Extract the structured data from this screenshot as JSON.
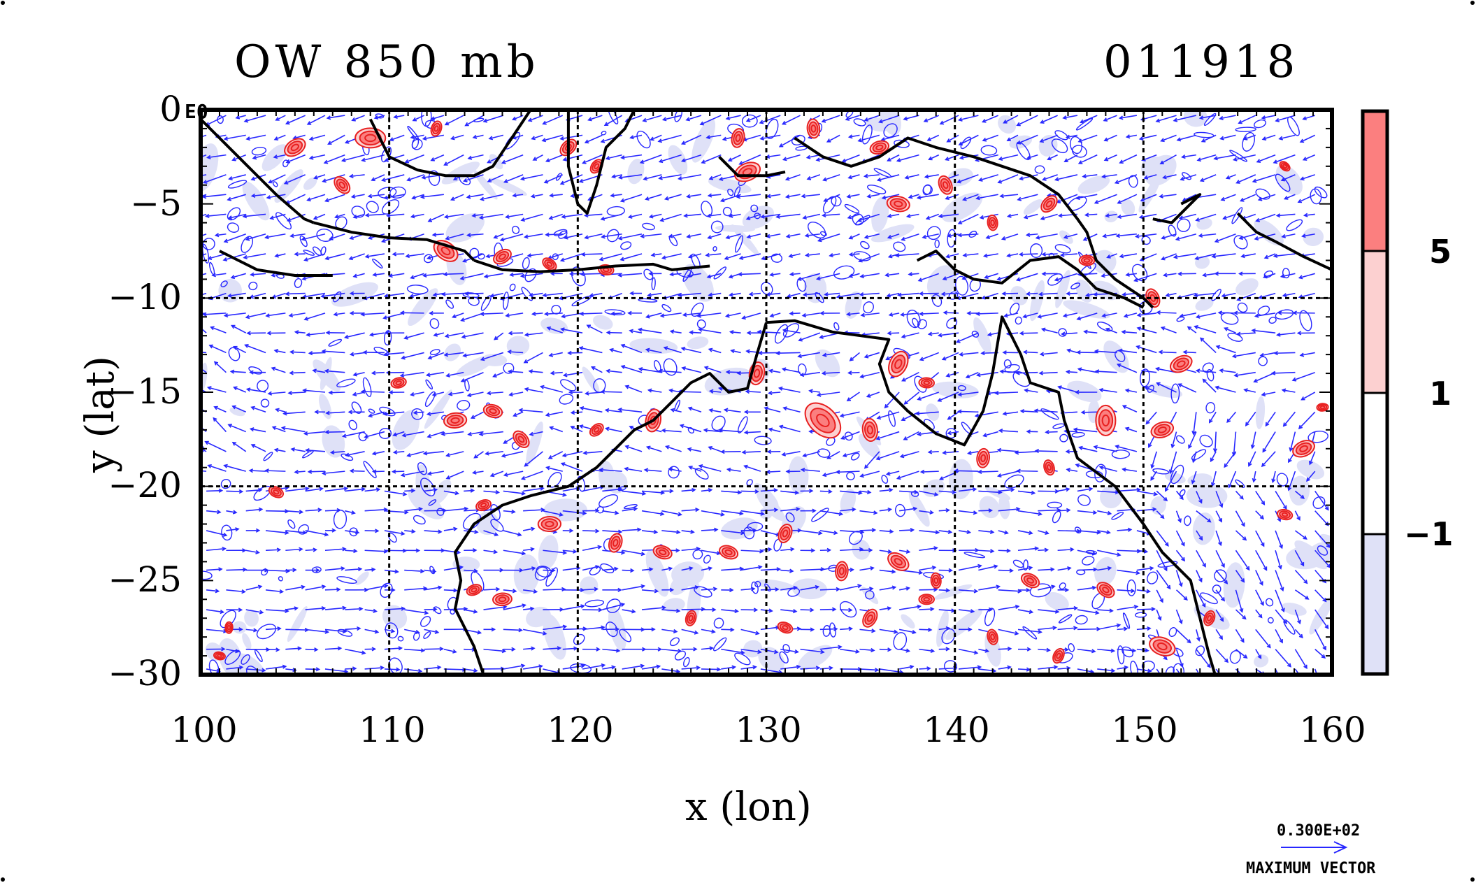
{
  "title_left": "OW 850 mb",
  "title_right": "011918",
  "corner_label": "E0",
  "x_axis": {
    "title": "x (lon)",
    "range": [
      100,
      160
    ],
    "ticks": [
      "100",
      "110",
      "120",
      "130",
      "140",
      "150",
      "160"
    ]
  },
  "y_axis": {
    "title": "y (lat)",
    "range": [
      -30,
      0
    ],
    "ticks": [
      "0",
      "−5",
      "−10",
      "−15",
      "−20",
      "−25",
      "−30"
    ]
  },
  "colorbar": {
    "labels": [
      "5",
      "1",
      "−1"
    ],
    "colors": {
      "strong_positive": "#fb7f7f",
      "weak_positive": "#fcd0d0",
      "neutral": "#ffffff",
      "negative": "#dfe1f7"
    }
  },
  "vector_legend": {
    "value": "0.300E+02",
    "label": "MAXIMUM VECTOR"
  },
  "colors": {
    "vector": "#2727ff",
    "positive_contour": "#e82020",
    "coastline": "#000000"
  },
  "chart_data": {
    "type": "map",
    "title": "OW 850 mb",
    "date": "011918",
    "xlabel": "x (lon)",
    "ylabel": "y (lat)",
    "xlim": [
      100,
      160
    ],
    "ylim": [
      -30,
      0
    ],
    "grid_lon": [
      110,
      120,
      130,
      140,
      150
    ],
    "grid_lat": [
      -10,
      -20
    ],
    "positive_blobs": [
      [
        105,
        -2,
        0.6
      ],
      [
        107.5,
        -4,
        0.5
      ],
      [
        109,
        -1.5,
        0.8
      ],
      [
        112.5,
        -1,
        0.4
      ],
      [
        113,
        -7.5,
        0.7
      ],
      [
        116,
        -7.8,
        0.5
      ],
      [
        118.5,
        -8.2,
        0.4
      ],
      [
        121.5,
        -8.5,
        0.4
      ],
      [
        119.5,
        -2,
        0.5
      ],
      [
        121,
        -3,
        0.4
      ],
      [
        128.5,
        -1.5,
        0.5
      ],
      [
        129,
        -3.3,
        0.7
      ],
      [
        132.5,
        -1,
        0.5
      ],
      [
        136,
        -2,
        0.5
      ],
      [
        137,
        -5,
        0.6
      ],
      [
        139.5,
        -4,
        0.5
      ],
      [
        142,
        -6,
        0.4
      ],
      [
        145,
        -5,
        0.5
      ],
      [
        147,
        -8,
        0.4
      ],
      [
        150.5,
        -10,
        0.5
      ],
      [
        152,
        -13.5,
        0.6
      ],
      [
        157.5,
        -3,
        0.3
      ],
      [
        104,
        -20.3,
        0.4
      ],
      [
        110.5,
        -14.5,
        0.4
      ],
      [
        113.5,
        -16.5,
        0.6
      ],
      [
        115.5,
        -16,
        0.5
      ],
      [
        117,
        -17.5,
        0.5
      ],
      [
        121,
        -17,
        0.4
      ],
      [
        124,
        -16.5,
        0.6
      ],
      [
        129.5,
        -14,
        0.6
      ],
      [
        133,
        -16.5,
        1.1
      ],
      [
        135.5,
        -17,
        0.6
      ],
      [
        137,
        -13.5,
        0.7
      ],
      [
        138.5,
        -14.5,
        0.4
      ],
      [
        141.5,
        -18.5,
        0.5
      ],
      [
        145,
        -19,
        0.4
      ],
      [
        148,
        -16.5,
        0.8
      ],
      [
        151,
        -17,
        0.6
      ],
      [
        158.5,
        -18,
        0.6
      ],
      [
        159.5,
        -15.8,
        0.3
      ],
      [
        115,
        -21,
        0.4
      ],
      [
        118.5,
        -22,
        0.6
      ],
      [
        122,
        -23,
        0.5
      ],
      [
        124.5,
        -23.5,
        0.5
      ],
      [
        128,
        -23.5,
        0.5
      ],
      [
        131,
        -22.5,
        0.5
      ],
      [
        134,
        -24.5,
        0.5
      ],
      [
        137,
        -24,
        0.6
      ],
      [
        139,
        -25,
        0.4
      ],
      [
        144,
        -25,
        0.5
      ],
      [
        148,
        -25.5,
        0.5
      ],
      [
        151,
        -28.5,
        0.7
      ],
      [
        153.5,
        -27,
        0.4
      ],
      [
        157.5,
        -21.5,
        0.4
      ],
      [
        114.5,
        -25.5,
        0.4
      ],
      [
        116,
        -26,
        0.5
      ],
      [
        126,
        -27,
        0.4
      ],
      [
        131,
        -27.5,
        0.4
      ],
      [
        135.5,
        -27,
        0.5
      ],
      [
        138.5,
        -26,
        0.4
      ],
      [
        142,
        -28,
        0.4
      ],
      [
        145.5,
        -29,
        0.4
      ],
      [
        101,
        -29,
        0.3
      ],
      [
        101.5,
        -27.5,
        0.3
      ]
    ],
    "coastlines": [
      [
        [
          100,
          -0.5
        ],
        [
          101,
          -1.5
        ],
        [
          102.5,
          -3
        ],
        [
          104,
          -4.5
        ],
        [
          105.5,
          -5.8
        ],
        [
          106,
          -6
        ]
      ],
      [
        [
          106,
          -6
        ],
        [
          108,
          -6.5
        ],
        [
          110,
          -6.8
        ],
        [
          112,
          -6.9
        ],
        [
          114,
          -7.5
        ],
        [
          114.5,
          -8
        ]
      ],
      [
        [
          114.5,
          -8
        ],
        [
          116,
          -8.5
        ],
        [
          118,
          -8.6
        ],
        [
          120,
          -8.5
        ],
        [
          122,
          -8.3
        ],
        [
          124,
          -8.2
        ],
        [
          125,
          -8.5
        ],
        [
          127,
          -8.3
        ]
      ],
      [
        [
          101,
          -7.5
        ],
        [
          103,
          -8.5
        ],
        [
          105,
          -8.8
        ],
        [
          107,
          -8.8
        ]
      ],
      [
        [
          109,
          -0.5
        ],
        [
          110,
          -2.5
        ],
        [
          111.5,
          -3.2
        ],
        [
          113,
          -3.5
        ],
        [
          114.5,
          -3.5
        ],
        [
          115.5,
          -3
        ],
        [
          116.5,
          -1.5
        ],
        [
          117.5,
          0
        ]
      ],
      [
        [
          119.5,
          0
        ],
        [
          119.5,
          -3
        ],
        [
          120,
          -5
        ],
        [
          120.5,
          -5.5
        ],
        [
          121,
          -4
        ],
        [
          121.5,
          -2
        ],
        [
          122.5,
          -1
        ],
        [
          123,
          0
        ]
      ],
      [
        [
          127.5,
          -2.5
        ],
        [
          128.5,
          -3.5
        ],
        [
          130,
          -3.5
        ],
        [
          131,
          -3.3
        ]
      ],
      [
        [
          131.5,
          -1.5
        ],
        [
          133,
          -2.5
        ],
        [
          134.5,
          -3
        ],
        [
          136,
          -2.5
        ],
        [
          137.5,
          -1.5
        ],
        [
          139,
          -2
        ],
        [
          141,
          -2.5
        ],
        [
          142.5,
          -3
        ],
        [
          144,
          -3.5
        ],
        [
          145.5,
          -4.5
        ],
        [
          146.5,
          -5.8
        ],
        [
          147,
          -6.5
        ],
        [
          147.5,
          -8
        ],
        [
          148.5,
          -9
        ],
        [
          150,
          -10
        ],
        [
          150.5,
          -10.5
        ]
      ],
      [
        [
          138,
          -8
        ],
        [
          139,
          -7.5
        ],
        [
          140,
          -8.5
        ],
        [
          141,
          -9
        ],
        [
          142.5,
          -9.2
        ],
        [
          144,
          -8
        ],
        [
          145.5,
          -7.8
        ],
        [
          146.5,
          -8.5
        ],
        [
          147.5,
          -9.5
        ],
        [
          149,
          -10
        ],
        [
          150,
          -10.5
        ]
      ],
      [
        [
          152,
          -5
        ],
        [
          153,
          -4.5
        ],
        [
          151.5,
          -6
        ],
        [
          150.5,
          -5.8
        ]
      ],
      [
        [
          155,
          -5.5
        ],
        [
          156,
          -6.5
        ],
        [
          157,
          -7
        ],
        [
          158.5,
          -7.8
        ],
        [
          160,
          -8.5
        ]
      ],
      [
        [
          130,
          -11.3
        ],
        [
          131.5,
          -11.2
        ],
        [
          132.5,
          -11.5
        ],
        [
          133.5,
          -11.8
        ],
        [
          135,
          -12
        ],
        [
          136.5,
          -12.2
        ],
        [
          136,
          -13.5
        ],
        [
          136.5,
          -15
        ],
        [
          137.5,
          -16
        ],
        [
          139,
          -17.2
        ],
        [
          140.5,
          -17.8
        ],
        [
          141.5,
          -16
        ],
        [
          142,
          -14
        ],
        [
          142.5,
          -11
        ],
        [
          143.5,
          -13
        ],
        [
          144,
          -14.5
        ],
        [
          145.5,
          -15
        ],
        [
          145.8,
          -16.5
        ],
        [
          146.5,
          -18.5
        ],
        [
          148.5,
          -20
        ],
        [
          150,
          -22
        ],
        [
          151,
          -23.5
        ],
        [
          152.5,
          -25
        ],
        [
          153,
          -27
        ],
        [
          153.5,
          -29
        ],
        [
          153.8,
          -30
        ]
      ],
      [
        [
          130,
          -11.3
        ],
        [
          129.5,
          -13
        ],
        [
          129,
          -14.8
        ],
        [
          128,
          -15
        ],
        [
          127,
          -14
        ],
        [
          126,
          -14.5
        ],
        [
          125,
          -15.5
        ],
        [
          124,
          -16.5
        ],
        [
          123,
          -17
        ],
        [
          122,
          -18
        ],
        [
          121,
          -19
        ],
        [
          119.5,
          -20
        ],
        [
          117.5,
          -20.5
        ],
        [
          116,
          -21
        ],
        [
          114.5,
          -22
        ],
        [
          113.5,
          -23.5
        ],
        [
          113.8,
          -25
        ],
        [
          113.5,
          -26.5
        ],
        [
          114,
          -27.5
        ],
        [
          114.5,
          -28.5
        ],
        [
          115,
          -30
        ]
      ]
    ]
  }
}
